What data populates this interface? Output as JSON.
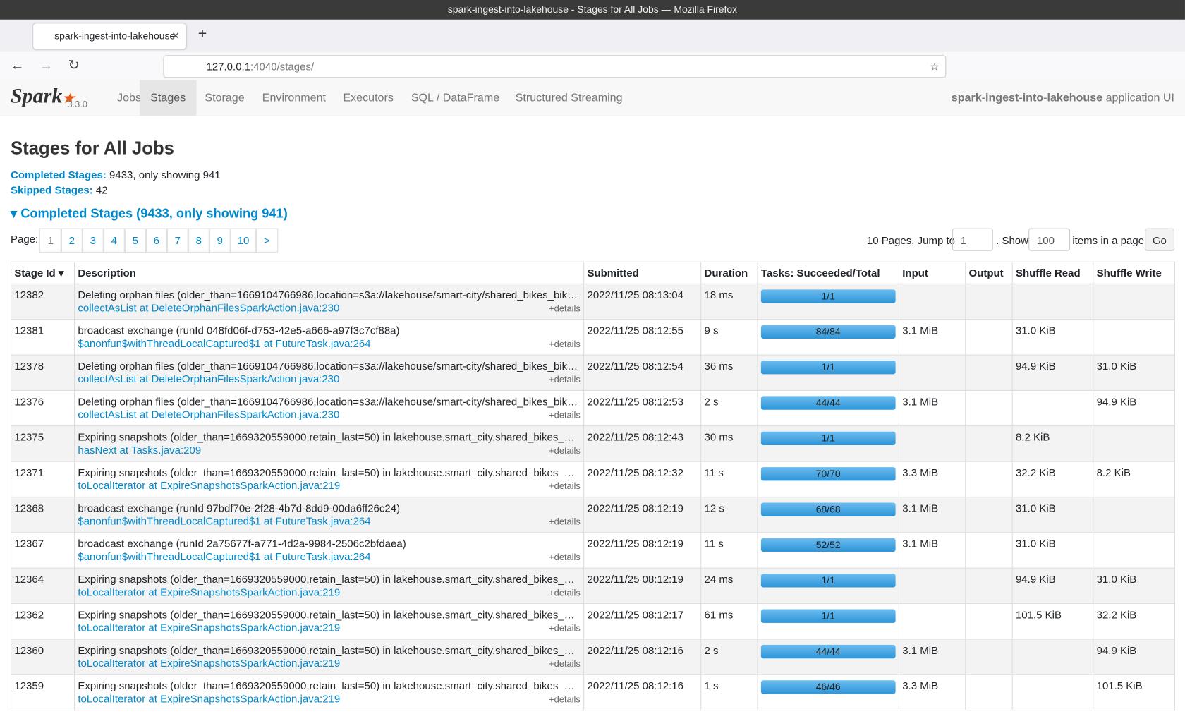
{
  "browser": {
    "window_title": "spark-ingest-into-lakehouse - Stages for All Jobs — Mozilla Firefox",
    "tab_title": "spark-ingest-into-lakehouse",
    "url_host": "127.0.0.1",
    "url_rest": ":4040/stages/"
  },
  "nav": {
    "version": "3.3.0",
    "tabs": [
      "Jobs",
      "Stages",
      "Storage",
      "Environment",
      "Executors",
      "SQL / DataFrame",
      "Structured Streaming"
    ],
    "app_name": "spark-ingest-into-lakehouse",
    "app_suffix": "application UI"
  },
  "page": {
    "title": "Stages for All Jobs",
    "summary": [
      {
        "label": "Completed Stages:",
        "value": "9433, only showing 941"
      },
      {
        "label": "Skipped Stages:",
        "value": "42"
      }
    ],
    "section_title": "Completed Stages (9433, only showing 941)"
  },
  "pagination": {
    "label": "Page:",
    "pages": [
      "1",
      "2",
      "3",
      "4",
      "5",
      "6",
      "7",
      "8",
      "9",
      "10",
      ">"
    ],
    "pages_text": "10 Pages. Jump to",
    "jump_value": "1",
    "show_text": ". Show",
    "show_value": "100",
    "items_text": "items in a page.",
    "go": "Go"
  },
  "table": {
    "headers": [
      "Stage Id ▾",
      "Description",
      "Submitted",
      "Duration",
      "Tasks: Succeeded/Total",
      "Input",
      "Output",
      "Shuffle Read",
      "Shuffle Write"
    ],
    "details": "+details",
    "rows": [
      {
        "id": "12382",
        "desc": "Deleting orphan files (older_than=1669104766986,location=s3a://lakehouse/smart-city/shared_bikes_bike_status)",
        "callsite": "collectAsList at DeleteOrphanFilesSparkAction.java:230",
        "submitted": "2022/11/25 08:13:04",
        "duration": "18 ms",
        "tasks": "1/1",
        "input": "",
        "output": "",
        "read": "",
        "write": ""
      },
      {
        "id": "12381",
        "desc": "broadcast exchange (runId 048fd06f-d753-42e5-a666-a97f3c7cf88a)",
        "callsite": "$anonfun$withThreadLocalCaptured$1 at FutureTask.java:264",
        "submitted": "2022/11/25 08:12:55",
        "duration": "9 s",
        "tasks": "84/84",
        "input": "3.1 MiB",
        "output": "",
        "read": "31.0 KiB",
        "write": ""
      },
      {
        "id": "12378",
        "desc": "Deleting orphan files (older_than=1669104766986,location=s3a://lakehouse/smart-city/shared_bikes_bike_status)",
        "callsite": "collectAsList at DeleteOrphanFilesSparkAction.java:230",
        "submitted": "2022/11/25 08:12:54",
        "duration": "36 ms",
        "tasks": "1/1",
        "input": "",
        "output": "",
        "read": "94.9 KiB",
        "write": "31.0 KiB"
      },
      {
        "id": "12376",
        "desc": "Deleting orphan files (older_than=1669104766986,location=s3a://lakehouse/smart-city/shared_bikes_bike_status)",
        "callsite": "collectAsList at DeleteOrphanFilesSparkAction.java:230",
        "submitted": "2022/11/25 08:12:53",
        "duration": "2 s",
        "tasks": "44/44",
        "input": "3.1 MiB",
        "output": "",
        "read": "",
        "write": "94.9 KiB"
      },
      {
        "id": "12375",
        "desc": "Expiring snapshots (older_than=1669320559000,retain_last=50) in lakehouse.smart_city.shared_bikes_bike_status",
        "callsite": "hasNext at Tasks.java:209",
        "submitted": "2022/11/25 08:12:43",
        "duration": "30 ms",
        "tasks": "1/1",
        "input": "",
        "output": "",
        "read": "8.2 KiB",
        "write": ""
      },
      {
        "id": "12371",
        "desc": "Expiring snapshots (older_than=1669320559000,retain_last=50) in lakehouse.smart_city.shared_bikes_bike_status",
        "callsite": "toLocalIterator at ExpireSnapshotsSparkAction.java:219",
        "submitted": "2022/11/25 08:12:32",
        "duration": "11 s",
        "tasks": "70/70",
        "input": "3.3 MiB",
        "output": "",
        "read": "32.2 KiB",
        "write": "8.2 KiB"
      },
      {
        "id": "12368",
        "desc": "broadcast exchange (runId 97bdf70e-2f28-4b7d-8dd9-00da6ff26c24)",
        "callsite": "$anonfun$withThreadLocalCaptured$1 at FutureTask.java:264",
        "submitted": "2022/11/25 08:12:19",
        "duration": "12 s",
        "tasks": "68/68",
        "input": "3.1 MiB",
        "output": "",
        "read": "31.0 KiB",
        "write": ""
      },
      {
        "id": "12367",
        "desc": "broadcast exchange (runId 2a75677f-a771-4d2a-9984-2506c2bfdaea)",
        "callsite": "$anonfun$withThreadLocalCaptured$1 at FutureTask.java:264",
        "submitted": "2022/11/25 08:12:19",
        "duration": "11 s",
        "tasks": "52/52",
        "input": "3.1 MiB",
        "output": "",
        "read": "31.0 KiB",
        "write": ""
      },
      {
        "id": "12364",
        "desc": "Expiring snapshots (older_than=1669320559000,retain_last=50) in lakehouse.smart_city.shared_bikes_bike_status",
        "callsite": "toLocalIterator at ExpireSnapshotsSparkAction.java:219",
        "submitted": "2022/11/25 08:12:19",
        "duration": "24 ms",
        "tasks": "1/1",
        "input": "",
        "output": "",
        "read": "94.9 KiB",
        "write": "31.0 KiB"
      },
      {
        "id": "12362",
        "desc": "Expiring snapshots (older_than=1669320559000,retain_last=50) in lakehouse.smart_city.shared_bikes_bike_status",
        "callsite": "toLocalIterator at ExpireSnapshotsSparkAction.java:219",
        "submitted": "2022/11/25 08:12:17",
        "duration": "61 ms",
        "tasks": "1/1",
        "input": "",
        "output": "",
        "read": "101.5 KiB",
        "write": "32.2 KiB"
      },
      {
        "id": "12360",
        "desc": "Expiring snapshots (older_than=1669320559000,retain_last=50) in lakehouse.smart_city.shared_bikes_bike_status",
        "callsite": "toLocalIterator at ExpireSnapshotsSparkAction.java:219",
        "submitted": "2022/11/25 08:12:16",
        "duration": "2 s",
        "tasks": "44/44",
        "input": "3.1 MiB",
        "output": "",
        "read": "",
        "write": "94.9 KiB"
      },
      {
        "id": "12359",
        "desc": "Expiring snapshots (older_than=1669320559000,retain_last=50) in lakehouse.smart_city.shared_bikes_bike_status",
        "callsite": "toLocalIterator at ExpireSnapshotsSparkAction.java:219",
        "submitted": "2022/11/25 08:12:16",
        "duration": "1 s",
        "tasks": "46/46",
        "input": "3.3 MiB",
        "output": "",
        "read": "",
        "write": "101.5 KiB"
      }
    ]
  }
}
